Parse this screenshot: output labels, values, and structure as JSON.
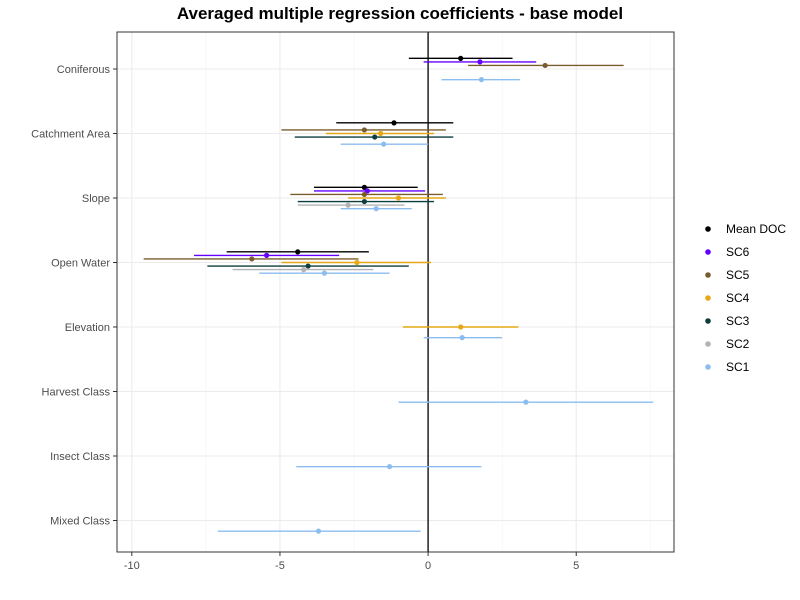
{
  "chart_data": {
    "type": "scatter",
    "subtype": "coefficient-plot-with-error-bars",
    "title": "Averaged multiple regression coefficients - base model",
    "xlabel": "",
    "ylabel": "",
    "xlim": [
      -10.5,
      8.3
    ],
    "x_ticks": [
      -10,
      -5,
      0,
      5
    ],
    "x_tick_labels": [
      "-10",
      "-5",
      "0",
      "5"
    ],
    "reference_line": 0,
    "grid": true,
    "legend_position": "right",
    "categories": [
      "Coniferous",
      "Catchment Area",
      "Slope",
      "Open Water",
      "Elevation",
      "Harvest Class",
      "Insect Class",
      "Mixed Class"
    ],
    "series": [
      {
        "name": "Mean DOC",
        "color": "#000000",
        "points": [
          {
            "category": "Coniferous",
            "estimate": 1.1,
            "low": -0.65,
            "high": 2.85
          },
          {
            "category": "Catchment Area",
            "estimate": -1.15,
            "low": -3.1,
            "high": 0.85
          },
          {
            "category": "Slope",
            "estimate": -2.15,
            "low": -3.85,
            "high": -0.35
          },
          {
            "category": "Open Water",
            "estimate": -4.4,
            "low": -6.8,
            "high": -2.0
          }
        ]
      },
      {
        "name": "SC6",
        "color": "#6600ff",
        "points": [
          {
            "category": "Coniferous",
            "estimate": 1.75,
            "low": -0.15,
            "high": 3.65
          },
          {
            "category": "Slope",
            "estimate": -2.05,
            "low": -3.85,
            "high": -0.1
          },
          {
            "category": "Open Water",
            "estimate": -5.45,
            "low": -7.9,
            "high": -3.0
          }
        ]
      },
      {
        "name": "SC5",
        "color": "#7a5c2e",
        "points": [
          {
            "category": "Coniferous",
            "estimate": 3.95,
            "low": 1.35,
            "high": 6.6
          },
          {
            "category": "Catchment Area",
            "estimate": -2.15,
            "low": -4.95,
            "high": 0.6
          },
          {
            "category": "Slope",
            "estimate": -2.15,
            "low": -4.65,
            "high": 0.5
          },
          {
            "category": "Open Water",
            "estimate": -5.95,
            "low": -9.6,
            "high": -2.35
          }
        ]
      },
      {
        "name": "SC4",
        "color": "#e6a817",
        "points": [
          {
            "category": "Catchment Area",
            "estimate": -1.6,
            "low": -3.45,
            "high": 0.2
          },
          {
            "category": "Slope",
            "estimate": -1.0,
            "low": -2.7,
            "high": 0.6
          },
          {
            "category": "Open Water",
            "estimate": -2.4,
            "low": -4.95,
            "high": 0.1
          },
          {
            "category": "Elevation",
            "estimate": 1.1,
            "low": -0.85,
            "high": 3.05
          }
        ]
      },
      {
        "name": "SC3",
        "color": "#0d3d3d",
        "points": [
          {
            "category": "Catchment Area",
            "estimate": -1.8,
            "low": -4.5,
            "high": 0.85
          },
          {
            "category": "Slope",
            "estimate": -2.15,
            "low": -4.4,
            "high": 0.2
          },
          {
            "category": "Open Water",
            "estimate": -4.05,
            "low": -7.45,
            "high": -0.65
          }
        ]
      },
      {
        "name": "SC2",
        "color": "#b3b3b3",
        "points": [
          {
            "category": "Slope",
            "estimate": -2.7,
            "low": -4.4,
            "high": -0.8
          },
          {
            "category": "Open Water",
            "estimate": -4.2,
            "low": -6.6,
            "high": -1.85
          }
        ]
      },
      {
        "name": "SC1",
        "color": "#8cbdf0",
        "points": [
          {
            "category": "Coniferous",
            "estimate": 1.8,
            "low": 0.45,
            "high": 3.1
          },
          {
            "category": "Catchment Area",
            "estimate": -1.5,
            "low": -2.95,
            "high": 0.0
          },
          {
            "category": "Slope",
            "estimate": -1.75,
            "low": -2.95,
            "high": -0.55
          },
          {
            "category": "Open Water",
            "estimate": -3.5,
            "low": -5.7,
            "high": -1.3
          },
          {
            "category": "Elevation",
            "estimate": 1.15,
            "low": -0.15,
            "high": 2.5
          },
          {
            "category": "Harvest Class",
            "estimate": 3.3,
            "low": -1.0,
            "high": 7.6
          },
          {
            "category": "Insect Class",
            "estimate": -1.3,
            "low": -4.45,
            "high": 1.8
          },
          {
            "category": "Mixed Class",
            "estimate": -3.7,
            "low": -7.1,
            "high": -0.25
          }
        ]
      }
    ],
    "legend_order": [
      "Mean DOC",
      "SC6",
      "SC5",
      "SC4",
      "SC3",
      "SC2",
      "SC1"
    ]
  }
}
